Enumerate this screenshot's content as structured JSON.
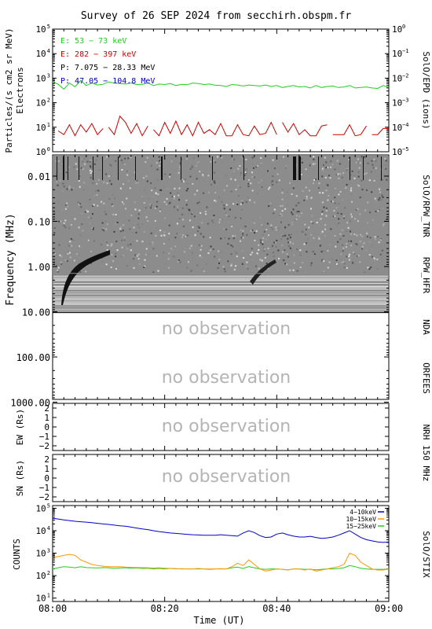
{
  "title": "Survey of 26 SEP 2024 from secchirh.obspm.fr",
  "colors": {
    "background": "#ffffff",
    "axes": "#000000",
    "no_observation_text": "#b4b4b4",
    "epd_e1": "#22cc22",
    "epd_e2": "#cc0000",
    "epd_p1": "#000000",
    "epd_p2": "#0000cc",
    "stix_4_10": "#0000cc",
    "stix_10_15": "#ff9900",
    "stix_15_25": "#22cc22"
  },
  "time_axis": {
    "label": "Time (UT)",
    "ticks": [
      "08:00",
      "08:20",
      "08:40",
      "09:00"
    ],
    "range_minutes": [
      0,
      60
    ]
  },
  "panels": {
    "epd": {
      "ylabel": "Particles/(s cm2 sr MeV)",
      "ylabel2": "Electrons",
      "right_label": "SolO/EPD (ions)",
      "ylim_log": [
        0,
        5
      ],
      "left_ticks": [
        {
          "base": "10",
          "exp": "0"
        },
        {
          "base": "10",
          "exp": "1"
        },
        {
          "base": "10",
          "exp": "2"
        },
        {
          "base": "10",
          "exp": "3"
        },
        {
          "base": "10",
          "exp": "4"
        },
        {
          "base": "10",
          "exp": "5"
        }
      ],
      "right_ticks": [
        {
          "base": "10",
          "exp": "−5"
        },
        {
          "base": "10",
          "exp": "−4"
        },
        {
          "base": "10",
          "exp": "−3"
        },
        {
          "base": "10",
          "exp": "−2"
        },
        {
          "base": "10",
          "exp": "−1"
        },
        {
          "base": "10",
          "exp": "0"
        }
      ],
      "legend": [
        "E: 53 − 73 keV",
        "E: 282 − 397 keV",
        "P: 7.075 − 28.33 MeV",
        "P: 47.05 − 104.8 MeV"
      ]
    },
    "spectrogram": {
      "ylabel": "Frequency (MHz)",
      "left_ticks": [
        "0.01",
        "0.10",
        "1.00",
        "10.00",
        "100.00",
        "1000.00"
      ],
      "right_labels": [
        "SolO/RPW_TNR",
        "RPW_HFR",
        "NDA",
        "ORFEES"
      ],
      "no_observation": [
        "no observation",
        "no observation"
      ]
    },
    "nrh_ew": {
      "ylabel": "EW (Rs)",
      "ticks": [
        "2",
        "1",
        "0",
        "−1",
        "−2"
      ],
      "no_observation": "no observation"
    },
    "nrh_sn": {
      "ylabel": "SN (Rs)",
      "ticks": [
        "2",
        "1",
        "0",
        "−1",
        "−2"
      ],
      "no_observation": "no observation",
      "right_label": "NRH 150 MHz"
    },
    "stix": {
      "ylabel": "COUNTS",
      "right_label": "SolO/STIX",
      "ylim_log": [
        1,
        5
      ],
      "ticks": [
        {
          "base": "10",
          "exp": "1"
        },
        {
          "base": "10",
          "exp": "2"
        },
        {
          "base": "10",
          "exp": "3"
        },
        {
          "base": "10",
          "exp": "4"
        },
        {
          "base": "10",
          "exp": "5"
        }
      ],
      "legend": [
        "4−10keV",
        "10−15keV",
        "15−25keV"
      ]
    }
  },
  "chart_data": [
    {
      "type": "line",
      "title": "SolO/EPD",
      "x_unit": "minutes after 08:00 UT",
      "ylim_log10": [
        0,
        5
      ],
      "series": [
        {
          "name": "E: 53 − 73 keV",
          "log10_values": [
            2.85,
            2.75,
            2.55,
            2.8,
            2.65,
            2.9,
            2.7,
            2.8,
            2.72,
            2.75,
            2.85,
            2.8,
            2.78,
            2.76,
            2.8,
            2.74,
            2.75,
            2.8,
            2.7,
            2.76,
            2.74,
            2.78,
            2.7,
            2.75,
            2.73,
            2.8,
            2.78,
            2.74,
            2.76,
            2.71,
            2.7,
            2.66,
            2.74,
            2.72,
            2.68,
            2.72,
            2.7,
            2.68,
            2.72,
            2.66,
            2.7,
            2.62,
            2.66,
            2.7,
            2.64,
            2.66,
            2.6,
            2.7,
            2.62,
            2.66,
            2.68,
            2.62,
            2.64,
            2.7,
            2.6,
            2.62,
            2.64,
            2.6,
            2.58,
            2.7,
            2.62
          ]
        },
        {
          "name": "E: 282 − 397 keV",
          "segments": [
            {
              "x": [
                1,
                2,
                3,
                4,
                5,
                6,
                7,
                8,
                9
              ],
              "log10_values": [
                0.85,
                0.7,
                1.1,
                0.65,
                1.1,
                0.8,
                1.15,
                0.7,
                0.95
              ]
            },
            {
              "x": [
                10,
                11,
                12,
                13,
                14,
                15,
                16,
                17
              ],
              "log10_values": [
                1.0,
                0.7,
                1.45,
                1.2,
                0.75,
                1.15,
                0.65,
                1.05
              ]
            },
            {
              "x": [
                18,
                19,
                20,
                21,
                22,
                23,
                24,
                25,
                26,
                27,
                28,
                29,
                30,
                31,
                32,
                33,
                34,
                35,
                36,
                37,
                38,
                39,
                40
              ],
              "log10_values": [
                0.9,
                0.65,
                1.2,
                0.75,
                1.25,
                0.7,
                1.1,
                0.65,
                1.2,
                0.75,
                0.9,
                0.7,
                1.15,
                0.65,
                0.65,
                1.1,
                0.7,
                0.65,
                1.05,
                0.7,
                0.75,
                1.2,
                0.7
              ]
            },
            {
              "x": [
                41,
                42,
                43,
                44,
                45,
                46,
                47,
                48,
                49
              ],
              "log10_values": [
                1.2,
                0.8,
                1.15,
                0.7,
                0.9,
                0.65,
                0.65,
                1.05,
                1.1
              ]
            },
            {
              "x": [
                50,
                51,
                52,
                53,
                54,
                55,
                56
              ],
              "log10_values": [
                0.7,
                0.7,
                0.7,
                1.1,
                0.65,
                0.7,
                1.05
              ]
            },
            {
              "x": [
                57,
                58,
                59,
                60
              ],
              "log10_values": [
                0.7,
                0.7,
                0.95,
                0.95
              ]
            }
          ]
        }
      ]
    },
    {
      "type": "line",
      "title": "SolO/STIX",
      "x_unit": "minutes after 08:00 UT",
      "ylim_log10": [
        1,
        5
      ],
      "series": [
        {
          "name": "4−10keV",
          "log10_values": [
            4.55,
            4.52,
            4.48,
            4.45,
            4.42,
            4.4,
            4.38,
            4.36,
            4.33,
            4.3,
            4.28,
            4.25,
            4.22,
            4.2,
            4.16,
            4.12,
            4.08,
            4.05,
            4.0,
            3.96,
            3.93,
            3.9,
            3.88,
            3.86,
            3.84,
            3.82,
            3.81,
            3.8,
            3.8,
            3.8,
            3.82,
            3.8,
            3.78,
            3.76,
            3.9,
            4.0,
            3.92,
            3.78,
            3.7,
            3.72,
            3.85,
            3.9,
            3.82,
            3.76,
            3.72,
            3.72,
            3.75,
            3.7,
            3.66,
            3.68,
            3.72,
            3.8,
            3.9,
            4.0,
            3.85,
            3.7,
            3.6,
            3.55,
            3.5,
            3.48,
            3.5
          ]
        },
        {
          "name": "10−15keV",
          "log10_values": [
            2.8,
            2.85,
            2.9,
            2.95,
            2.9,
            2.7,
            2.6,
            2.5,
            2.45,
            2.42,
            2.4,
            2.4,
            2.4,
            2.38,
            2.37,
            2.36,
            2.36,
            2.35,
            2.34,
            2.35,
            2.33,
            2.32,
            2.3,
            2.31,
            2.3,
            2.3,
            2.32,
            2.3,
            2.3,
            2.3,
            2.31,
            2.3,
            2.4,
            2.55,
            2.45,
            2.7,
            2.5,
            2.3,
            2.2,
            2.25,
            2.3,
            2.28,
            2.25,
            2.3,
            2.3,
            2.25,
            2.3,
            2.2,
            2.25,
            2.3,
            2.35,
            2.4,
            2.5,
            3.0,
            2.9,
            2.6,
            2.45,
            2.3,
            2.25,
            2.25,
            2.3
          ]
        },
        {
          "name": "15−25keV",
          "log10_values": [
            2.3,
            2.35,
            2.4,
            2.38,
            2.35,
            2.4,
            2.36,
            2.35,
            2.34,
            2.36,
            2.35,
            2.33,
            2.34,
            2.35,
            2.33,
            2.34,
            2.32,
            2.33,
            2.3,
            2.32,
            2.3,
            2.32,
            2.31,
            2.3,
            2.3,
            2.3,
            2.3,
            2.3,
            2.28,
            2.3,
            2.3,
            2.3,
            2.35,
            2.38,
            2.32,
            2.4,
            2.35,
            2.3,
            2.28,
            2.3,
            2.3,
            2.28,
            2.26,
            2.3,
            2.3,
            2.28,
            2.28,
            2.26,
            2.28,
            2.3,
            2.3,
            2.32,
            2.35,
            2.45,
            2.4,
            2.33,
            2.3,
            2.28,
            2.28,
            2.28,
            2.3
          ]
        }
      ]
    }
  ]
}
